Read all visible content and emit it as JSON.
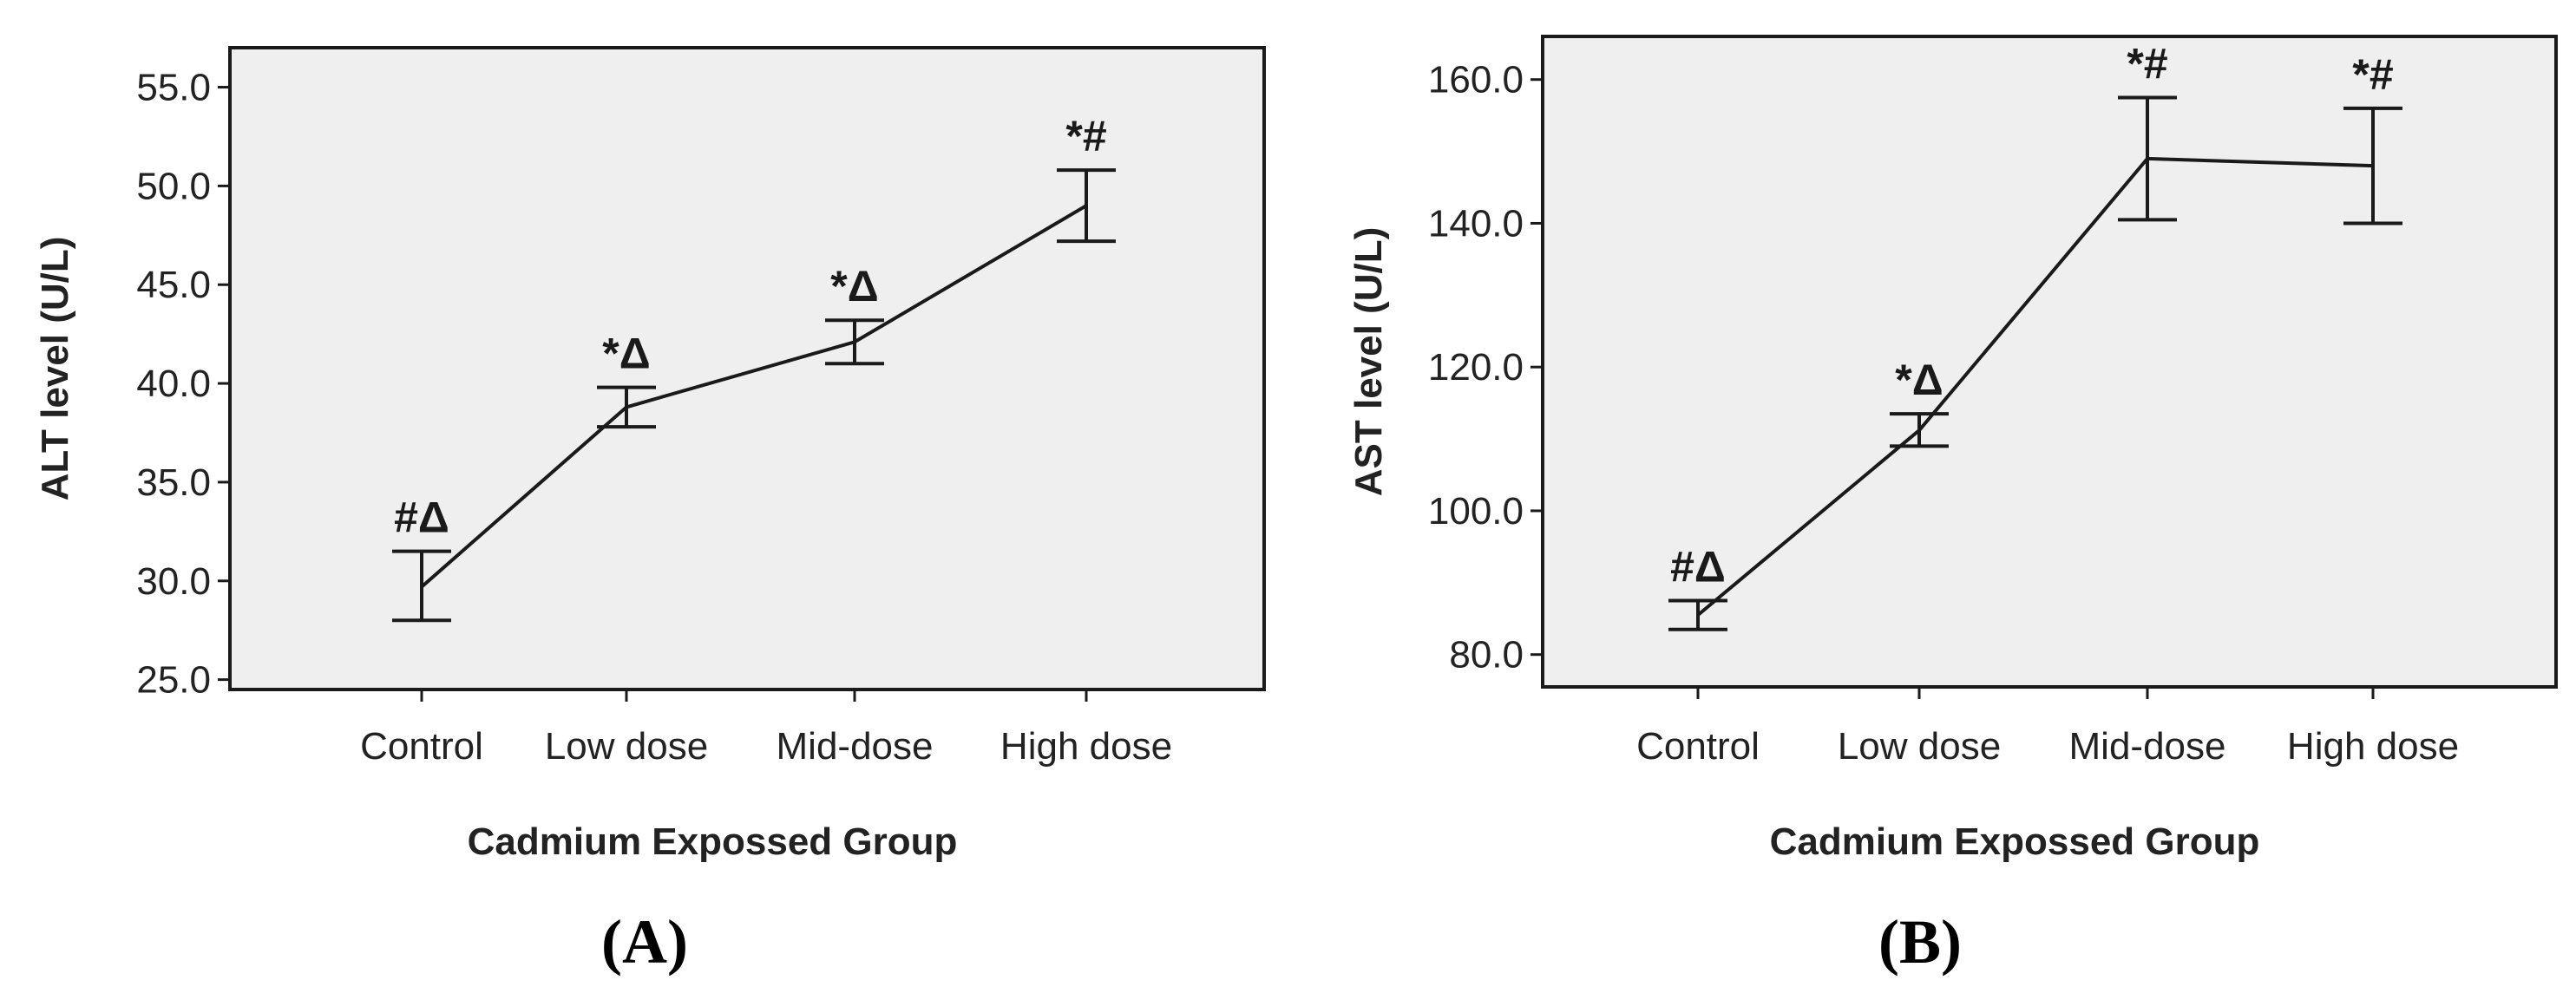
{
  "chart_data": [
    {
      "type": "line",
      "panel_label": "A",
      "xlabel": "Cadmium Expossed Group",
      "ylabel": "ALT level (U/L)",
      "categories": [
        "Control",
        "Low dose",
        "Mid-dose",
        "High dose"
      ],
      "values": [
        29.7,
        38.8,
        42.1,
        49.0
      ],
      "error_low": [
        28.0,
        37.8,
        41.0,
        47.2
      ],
      "error_high": [
        31.5,
        39.8,
        43.2,
        50.8
      ],
      "annotations": [
        "#Δ",
        "*Δ",
        "*Δ",
        "*#"
      ],
      "ylim": [
        24.5,
        57.0
      ],
      "yticks": [
        25.0,
        30.0,
        35.0,
        40.0,
        45.0,
        50.0,
        55.0
      ],
      "ytick_labels": [
        "25.0",
        "30.0",
        "35.0",
        "40.0",
        "45.0",
        "50.0",
        "55.0"
      ],
      "grid": false
    },
    {
      "type": "line",
      "panel_label": "B",
      "xlabel": "Cadmium Expossed Group",
      "ylabel": "AST level (U/L)",
      "categories": [
        "Control",
        "Low dose",
        "Mid-dose",
        "High dose"
      ],
      "values": [
        85.5,
        111.2,
        149.0,
        148.0
      ],
      "error_low": [
        83.5,
        109.0,
        140.5,
        140.0
      ],
      "error_high": [
        87.5,
        113.5,
        157.5,
        156.0
      ],
      "annotations": [
        "#Δ",
        "*Δ",
        "*#",
        "*#"
      ],
      "ylim": [
        75.5,
        166.0
      ],
      "yticks": [
        80.0,
        100.0,
        120.0,
        140.0,
        160.0
      ],
      "ytick_labels": [
        "80.0",
        "100.0",
        "120.0",
        "140.0",
        "160.0"
      ],
      "grid": false
    }
  ]
}
